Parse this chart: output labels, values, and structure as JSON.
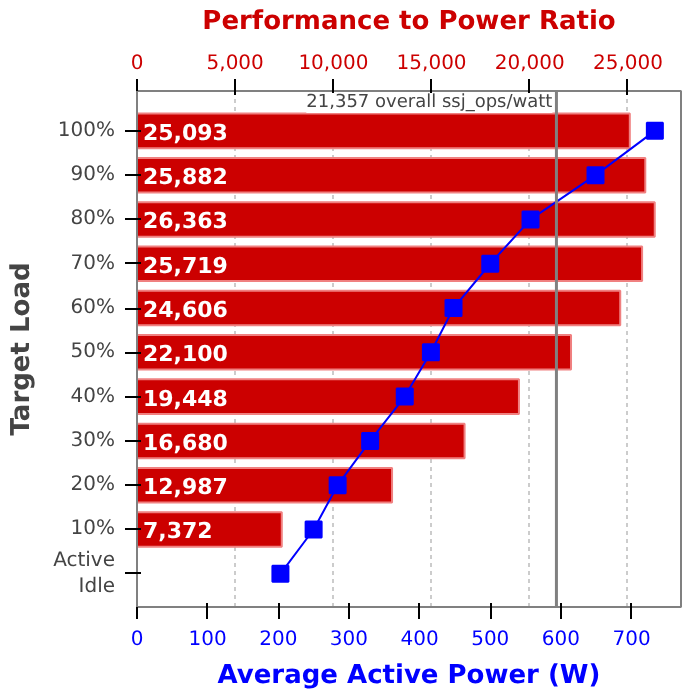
{
  "chart_data": {
    "type": "bar",
    "orientation": "horizontal",
    "x2label": "Performance to Power Ratio",
    "xlabel": "Average Active Power (W)",
    "ylabel": "Target Load",
    "categories": [
      "100%",
      "90%",
      "80%",
      "70%",
      "60%",
      "50%",
      "40%",
      "30%",
      "20%",
      "10%",
      "Active\nIdle"
    ],
    "series": [
      {
        "axis": "x2",
        "color": "#cc0000",
        "values": [
          25093,
          25882,
          26363,
          25719,
          24606,
          22100,
          19448,
          16680,
          12987,
          7372,
          null
        ],
        "value_labels": [
          "25,093",
          "25,882",
          "26,363",
          "25,719",
          "24,606",
          "22,100",
          "19,448",
          "16,680",
          "12,987",
          "7,372",
          null
        ]
      },
      {
        "type": "line",
        "color": "#0000ff",
        "marker": "square",
        "values": [
          733,
          649,
          557,
          500,
          448,
          416,
          379,
          330,
          284,
          250,
          203
        ]
      }
    ],
    "xlim": [
      0,
      770
    ],
    "xticks": [
      0,
      100,
      200,
      300,
      400,
      500,
      600,
      700
    ],
    "x2lim": [
      0,
      27700
    ],
    "x2ticks": [
      {
        "value": 0,
        "label": "0"
      },
      {
        "value": 5000,
        "label": "5,000"
      },
      {
        "value": 10000,
        "label": "10,000"
      },
      {
        "value": 15000,
        "label": "15,000"
      },
      {
        "value": 20000,
        "label": "20,000"
      },
      {
        "value": 25000,
        "label": "25,000"
      }
    ],
    "grid": "x2",
    "ref_lines": [
      {
        "axis": "x2",
        "value": 21357,
        "label": "21,357 overall ssj_ops/watt",
        "color": "#808080"
      }
    ],
    "title": null
  }
}
